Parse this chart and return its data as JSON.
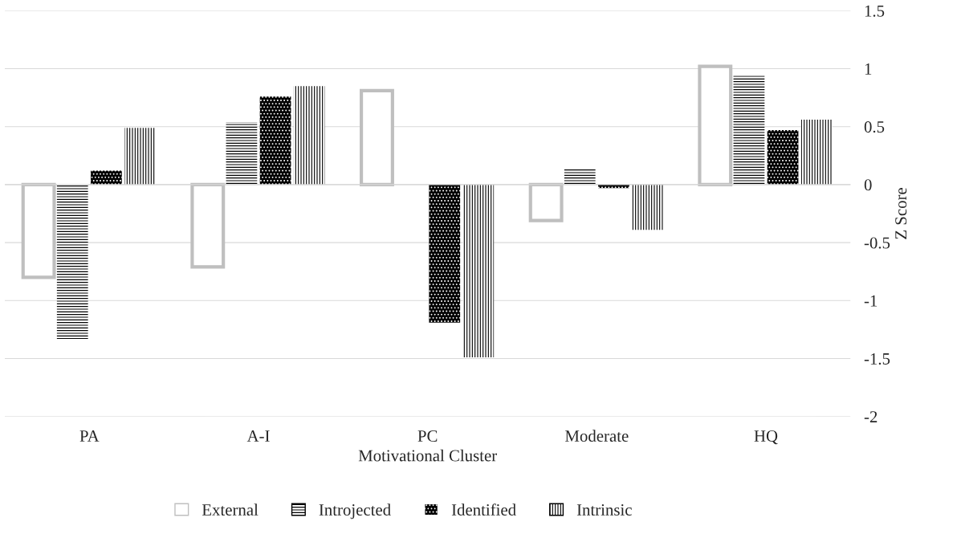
{
  "chart_data": {
    "type": "bar",
    "xlabel": "Motivational Cluster",
    "ylabel": "Z Score",
    "categories": [
      "PA",
      "A-I",
      "PC",
      "Moderate",
      "HQ"
    ],
    "series": [
      {
        "name": "External",
        "color": "#bfbfbf",
        "values": [
          -0.8,
          -0.71,
          0.81,
          -0.31,
          1.02
        ]
      },
      {
        "name": "Introjected",
        "color": "#000000",
        "values": [
          -1.33,
          0.54,
          null,
          0.14,
          0.94
        ]
      },
      {
        "name": "Identified",
        "color": "#000000",
        "values": [
          0.12,
          0.76,
          -1.19,
          -0.03,
          0.47
        ]
      },
      {
        "name": "Intrinsic",
        "color": "#000000",
        "values": [
          0.49,
          0.85,
          -1.49,
          -0.39,
          0.56
        ]
      }
    ],
    "ylim": [
      -2,
      1.5
    ],
    "yticks": [
      {
        "value": -2,
        "label": "-2"
      },
      {
        "value": -1.5,
        "label": "-1.5"
      },
      {
        "value": -1,
        "label": "-1"
      },
      {
        "value": -0.5,
        "label": "-0.5"
      },
      0,
      0.5,
      1,
      1.5
    ],
    "grid": "y",
    "legend": "bottom"
  }
}
